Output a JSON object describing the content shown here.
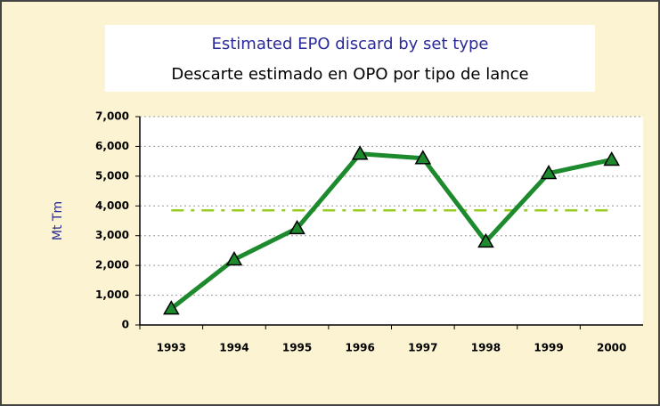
{
  "chart_data": {
    "type": "line",
    "title": "Estimated EPO discard by set type",
    "subtitle": "Descarte estimado en OPO por tipo de lance",
    "y_label": "Mt Tm",
    "categories": [
      "1993",
      "1994",
      "1995",
      "1996",
      "1997",
      "1998",
      "1999",
      "2000"
    ],
    "series": [
      {
        "color": "#1e8a2e",
        "values": [
          550,
          2200,
          3250,
          5750,
          5600,
          2800,
          5100,
          5550
        ]
      }
    ],
    "reference_line": {
      "value": 3850,
      "color": "#99cc22"
    },
    "ylim": [
      0,
      7000
    ],
    "yticks": [
      0,
      {
        "value": 1000,
        "label": "1,000"
      },
      {
        "value": 2000,
        "label": "2,000"
      },
      {
        "value": 3000,
        "label": "3,000"
      },
      {
        "value": 4000,
        "label": "4,000"
      },
      {
        "value": 5000,
        "label": "5,000"
      },
      {
        "value": 6000,
        "label": "6,000"
      },
      {
        "value": 7000,
        "label": "7,000"
      }
    ],
    "grid": true
  }
}
